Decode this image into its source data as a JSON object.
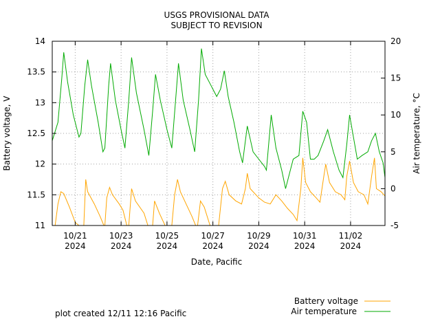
{
  "chart_data": {
    "type": "line",
    "title": [
      "USGS PROVISIONAL DATA",
      "SUBJECT TO REVISION"
    ],
    "xlabel": "Date, Pacific",
    "ylabel_left": "Battery voltage, V",
    "ylabel_right": "Air temperature, °C",
    "ylim_left": [
      11,
      14
    ],
    "ylim_right": [
      -5,
      20
    ],
    "y_ticks_left": [
      "11",
      "11.5",
      "12",
      "12.5",
      "13",
      "13.5",
      "14"
    ],
    "y_ticks_right": [
      "-5",
      "0",
      "5",
      "10",
      "15",
      "20"
    ],
    "x_range": [
      "2024-10-20 00:00",
      "2024-11-03 12:00"
    ],
    "x_ticks": [
      {
        "date": "2024-10-21",
        "line1": "10/21",
        "line2": "2024"
      },
      {
        "date": "2024-10-23",
        "line1": "10/23",
        "line2": "2024"
      },
      {
        "date": "2024-10-25",
        "line1": "10/25",
        "line2": "2024"
      },
      {
        "date": "2024-10-27",
        "line1": "10/27",
        "line2": "2024"
      },
      {
        "date": "2024-10-29",
        "line1": "10/29",
        "line2": "2024"
      },
      {
        "date": "2024-10-31",
        "line1": "10/31",
        "line2": "2024"
      },
      {
        "date": "2024-11-02",
        "line1": "11/02",
        "line2": "2024"
      }
    ],
    "grid": true,
    "legend_position": "bottom-right",
    "series": [
      {
        "name": "Battery voltage",
        "axis": "left",
        "color": "#ffa500",
        "points": [
          [
            "2024-10-20 03:00",
            11.0
          ],
          [
            "2024-10-20 06:00",
            11.35
          ],
          [
            "2024-10-20 09:00",
            11.55
          ],
          [
            "2024-10-20 12:00",
            11.52
          ],
          [
            "2024-10-20 18:00",
            11.3
          ],
          [
            "2024-10-21 00:00",
            11.05
          ],
          [
            "2024-10-21 04:00",
            11.0
          ],
          [
            "2024-10-21 09:00",
            11.0
          ],
          [
            "2024-10-21 11:00",
            11.75
          ],
          [
            "2024-10-21 13:00",
            11.55
          ],
          [
            "2024-10-21 20:00",
            11.35
          ],
          [
            "2024-10-22 02:00",
            11.15
          ],
          [
            "2024-10-22 06:00",
            11.0
          ],
          [
            "2024-10-22 07:00",
            11.0
          ],
          [
            "2024-10-22 09:00",
            11.45
          ],
          [
            "2024-10-22 12:00",
            11.62
          ],
          [
            "2024-10-22 15:00",
            11.5
          ],
          [
            "2024-10-22 22:00",
            11.35
          ],
          [
            "2024-10-23 02:00",
            11.25
          ],
          [
            "2024-10-23 06:00",
            11.0
          ],
          [
            "2024-10-23 08:00",
            11.0
          ],
          [
            "2024-10-23 11:00",
            11.6
          ],
          [
            "2024-10-23 15:00",
            11.4
          ],
          [
            "2024-10-24 00:00",
            11.2
          ],
          [
            "2024-10-24 04:00",
            11.0
          ],
          [
            "2024-10-24 09:00",
            11.0
          ],
          [
            "2024-10-24 11:00",
            11.4
          ],
          [
            "2024-10-24 16:00",
            11.2
          ],
          [
            "2024-10-24 22:00",
            11.0
          ],
          [
            "2024-10-25 05:00",
            11.0
          ],
          [
            "2024-10-25 08:00",
            11.5
          ],
          [
            "2024-10-25 11:00",
            11.75
          ],
          [
            "2024-10-25 14:00",
            11.55
          ],
          [
            "2024-10-25 20:00",
            11.35
          ],
          [
            "2024-10-26 02:00",
            11.15
          ],
          [
            "2024-10-26 06:00",
            11.0
          ],
          [
            "2024-10-26 08:00",
            11.0
          ],
          [
            "2024-10-26 11:00",
            11.4
          ],
          [
            "2024-10-26 15:00",
            11.3
          ],
          [
            "2024-10-26 21:00",
            11.0
          ],
          [
            "2024-10-27 06:00",
            11.0
          ],
          [
            "2024-10-27 10:00",
            11.6
          ],
          [
            "2024-10-27 13:00",
            11.72
          ],
          [
            "2024-10-27 17:00",
            11.5
          ],
          [
            "2024-10-28 00:00",
            11.4
          ],
          [
            "2024-10-28 06:00",
            11.35
          ],
          [
            "2024-10-28 10:00",
            11.6
          ],
          [
            "2024-10-28 12:00",
            11.85
          ],
          [
            "2024-10-28 15:00",
            11.6
          ],
          [
            "2024-10-28 18:00",
            11.55
          ],
          [
            "2024-10-29 00:00",
            11.45
          ],
          [
            "2024-10-29 06:00",
            11.38
          ],
          [
            "2024-10-29 12:00",
            11.35
          ],
          [
            "2024-10-29 18:00",
            11.5
          ],
          [
            "2024-10-30 00:00",
            11.4
          ],
          [
            "2024-10-30 06:00",
            11.28
          ],
          [
            "2024-10-30 12:00",
            11.18
          ],
          [
            "2024-10-30 16:00",
            11.08
          ],
          [
            "2024-10-30 20:00",
            11.6
          ],
          [
            "2024-10-30 22:00",
            12.1
          ],
          [
            "2024-10-31 01:00",
            11.7
          ],
          [
            "2024-10-31 06:00",
            11.55
          ],
          [
            "2024-10-31 12:00",
            11.45
          ],
          [
            "2024-10-31 16:00",
            11.38
          ],
          [
            "2024-10-31 20:00",
            11.8
          ],
          [
            "2024-10-31 22:00",
            12.0
          ],
          [
            "2024-11-01 02:00",
            11.7
          ],
          [
            "2024-11-01 08:00",
            11.55
          ],
          [
            "2024-11-01 14:00",
            11.5
          ],
          [
            "2024-11-01 18:00",
            11.42
          ],
          [
            "2024-11-01 20:00",
            11.8
          ],
          [
            "2024-11-01 23:00",
            12.05
          ],
          [
            "2024-11-02 03:00",
            11.7
          ],
          [
            "2024-11-02 08:00",
            11.55
          ],
          [
            "2024-11-02 14:00",
            11.5
          ],
          [
            "2024-11-02 18:00",
            11.35
          ],
          [
            "2024-11-02 22:00",
            11.8
          ],
          [
            "2024-11-03 01:00",
            12.1
          ],
          [
            "2024-11-03 03:00",
            11.6
          ],
          [
            "2024-11-03 08:00",
            11.55
          ],
          [
            "2024-11-03 12:00",
            11.48
          ]
        ]
      },
      {
        "name": "Air temperature",
        "axis": "right",
        "color": "#00aa00",
        "points": [
          [
            "2024-10-20 00:00",
            6.5
          ],
          [
            "2024-10-20 06:00",
            9.0
          ],
          [
            "2024-10-20 10:00",
            15.0
          ],
          [
            "2024-10-20 12:00",
            18.5
          ],
          [
            "2024-10-20 16:00",
            14.5
          ],
          [
            "2024-10-20 22:00",
            10.0
          ],
          [
            "2024-10-21 04:00",
            7.0
          ],
          [
            "2024-10-21 06:00",
            7.5
          ],
          [
            "2024-10-21 10:00",
            14.0
          ],
          [
            "2024-10-21 13:00",
            17.5
          ],
          [
            "2024-10-21 17:00",
            14.0
          ],
          [
            "2024-10-22 00:00",
            9.0
          ],
          [
            "2024-10-22 05:00",
            5.0
          ],
          [
            "2024-10-22 07:00",
            5.5
          ],
          [
            "2024-10-22 11:00",
            14.0
          ],
          [
            "2024-10-22 13:00",
            17.0
          ],
          [
            "2024-10-22 18:00",
            12.0
          ],
          [
            "2024-10-23 00:00",
            8.0
          ],
          [
            "2024-10-23 04:00",
            5.5
          ],
          [
            "2024-10-23 08:00",
            12.0
          ],
          [
            "2024-10-23 11:00",
            17.8
          ],
          [
            "2024-10-23 16:00",
            13.0
          ],
          [
            "2024-10-24 00:00",
            8.0
          ],
          [
            "2024-10-24 05:00",
            4.5
          ],
          [
            "2024-10-24 09:00",
            10.5
          ],
          [
            "2024-10-24 12:00",
            15.5
          ],
          [
            "2024-10-24 17:00",
            12.0
          ],
          [
            "2024-10-25 00:00",
            8.0
          ],
          [
            "2024-10-25 05:00",
            5.5
          ],
          [
            "2024-10-25 09:00",
            12.0
          ],
          [
            "2024-10-25 12:00",
            17.0
          ],
          [
            "2024-10-25 17:00",
            12.0
          ],
          [
            "2024-10-26 00:00",
            8.0
          ],
          [
            "2024-10-26 05:00",
            5.0
          ],
          [
            "2024-10-26 09:00",
            12.0
          ],
          [
            "2024-10-26 12:00",
            19.0
          ],
          [
            "2024-10-26 16:00",
            15.5
          ],
          [
            "2024-10-26 22:00",
            14.0
          ],
          [
            "2024-10-27 04:00",
            12.5
          ],
          [
            "2024-10-27 08:00",
            13.5
          ],
          [
            "2024-10-27 12:00",
            16.0
          ],
          [
            "2024-10-27 16:00",
            12.5
          ],
          [
            "2024-10-27 22:00",
            9.0
          ],
          [
            "2024-10-28 04:00",
            5.0
          ],
          [
            "2024-10-28 07:00",
            3.5
          ],
          [
            "2024-10-28 12:00",
            8.5
          ],
          [
            "2024-10-28 18:00",
            5.0
          ],
          [
            "2024-10-29 00:00",
            4.0
          ],
          [
            "2024-10-29 06:00",
            3.0
          ],
          [
            "2024-10-29 08:00",
            2.5
          ],
          [
            "2024-10-29 13:00",
            10.0
          ],
          [
            "2024-10-29 18:00",
            5.5
          ],
          [
            "2024-10-30 00:00",
            2.5
          ],
          [
            "2024-10-30 04:00",
            0.0
          ],
          [
            "2024-10-30 08:00",
            2.0
          ],
          [
            "2024-10-30 12:00",
            4.0
          ],
          [
            "2024-10-30 18:00",
            4.5
          ],
          [
            "2024-10-30 22:00",
            10.5
          ],
          [
            "2024-10-31 02:00",
            9.0
          ],
          [
            "2024-10-31 06:00",
            4.0
          ],
          [
            "2024-10-31 10:00",
            4.0
          ],
          [
            "2024-10-31 14:00",
            4.5
          ],
          [
            "2024-10-31 20:00",
            6.5
          ],
          [
            "2024-11-01 00:00",
            8.0
          ],
          [
            "2024-11-01 06:00",
            5.0
          ],
          [
            "2024-11-01 12:00",
            2.5
          ],
          [
            "2024-11-01 16:00",
            1.5
          ],
          [
            "2024-11-01 20:00",
            6.0
          ],
          [
            "2024-11-01 23:00",
            10.0
          ],
          [
            "2024-11-02 03:00",
            7.0
          ],
          [
            "2024-11-02 07:00",
            4.0
          ],
          [
            "2024-11-02 12:00",
            4.5
          ],
          [
            "2024-11-02 18:00",
            5.0
          ],
          [
            "2024-11-02 22:00",
            6.5
          ],
          [
            "2024-11-03 02:00",
            7.5
          ],
          [
            "2024-11-03 06:00",
            5.0
          ],
          [
            "2024-11-03 10:00",
            3.5
          ],
          [
            "2024-11-03 12:00",
            1.5
          ]
        ]
      }
    ],
    "footer_note": "plot created 12/11 12:16 Pacific"
  }
}
